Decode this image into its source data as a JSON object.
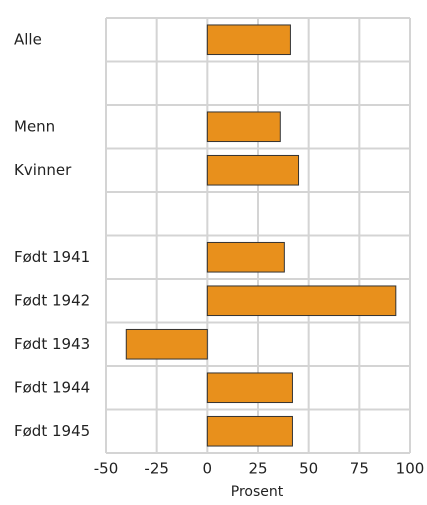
{
  "chart_data": {
    "type": "barh",
    "categories": [
      "Alle",
      null,
      "Menn",
      "Kvinner",
      null,
      "Født 1941",
      "Født 1942",
      "Født 1943",
      "Født 1944",
      "Født 1945"
    ],
    "values": [
      41,
      null,
      36,
      45,
      null,
      38,
      93,
      -40,
      42,
      42
    ],
    "color": "#e8901c",
    "xlabel": "Prosent",
    "xlim": [
      -50,
      100
    ],
    "xticks": [
      -50,
      -25,
      0,
      25,
      50,
      75,
      100
    ],
    "grid": true
  }
}
